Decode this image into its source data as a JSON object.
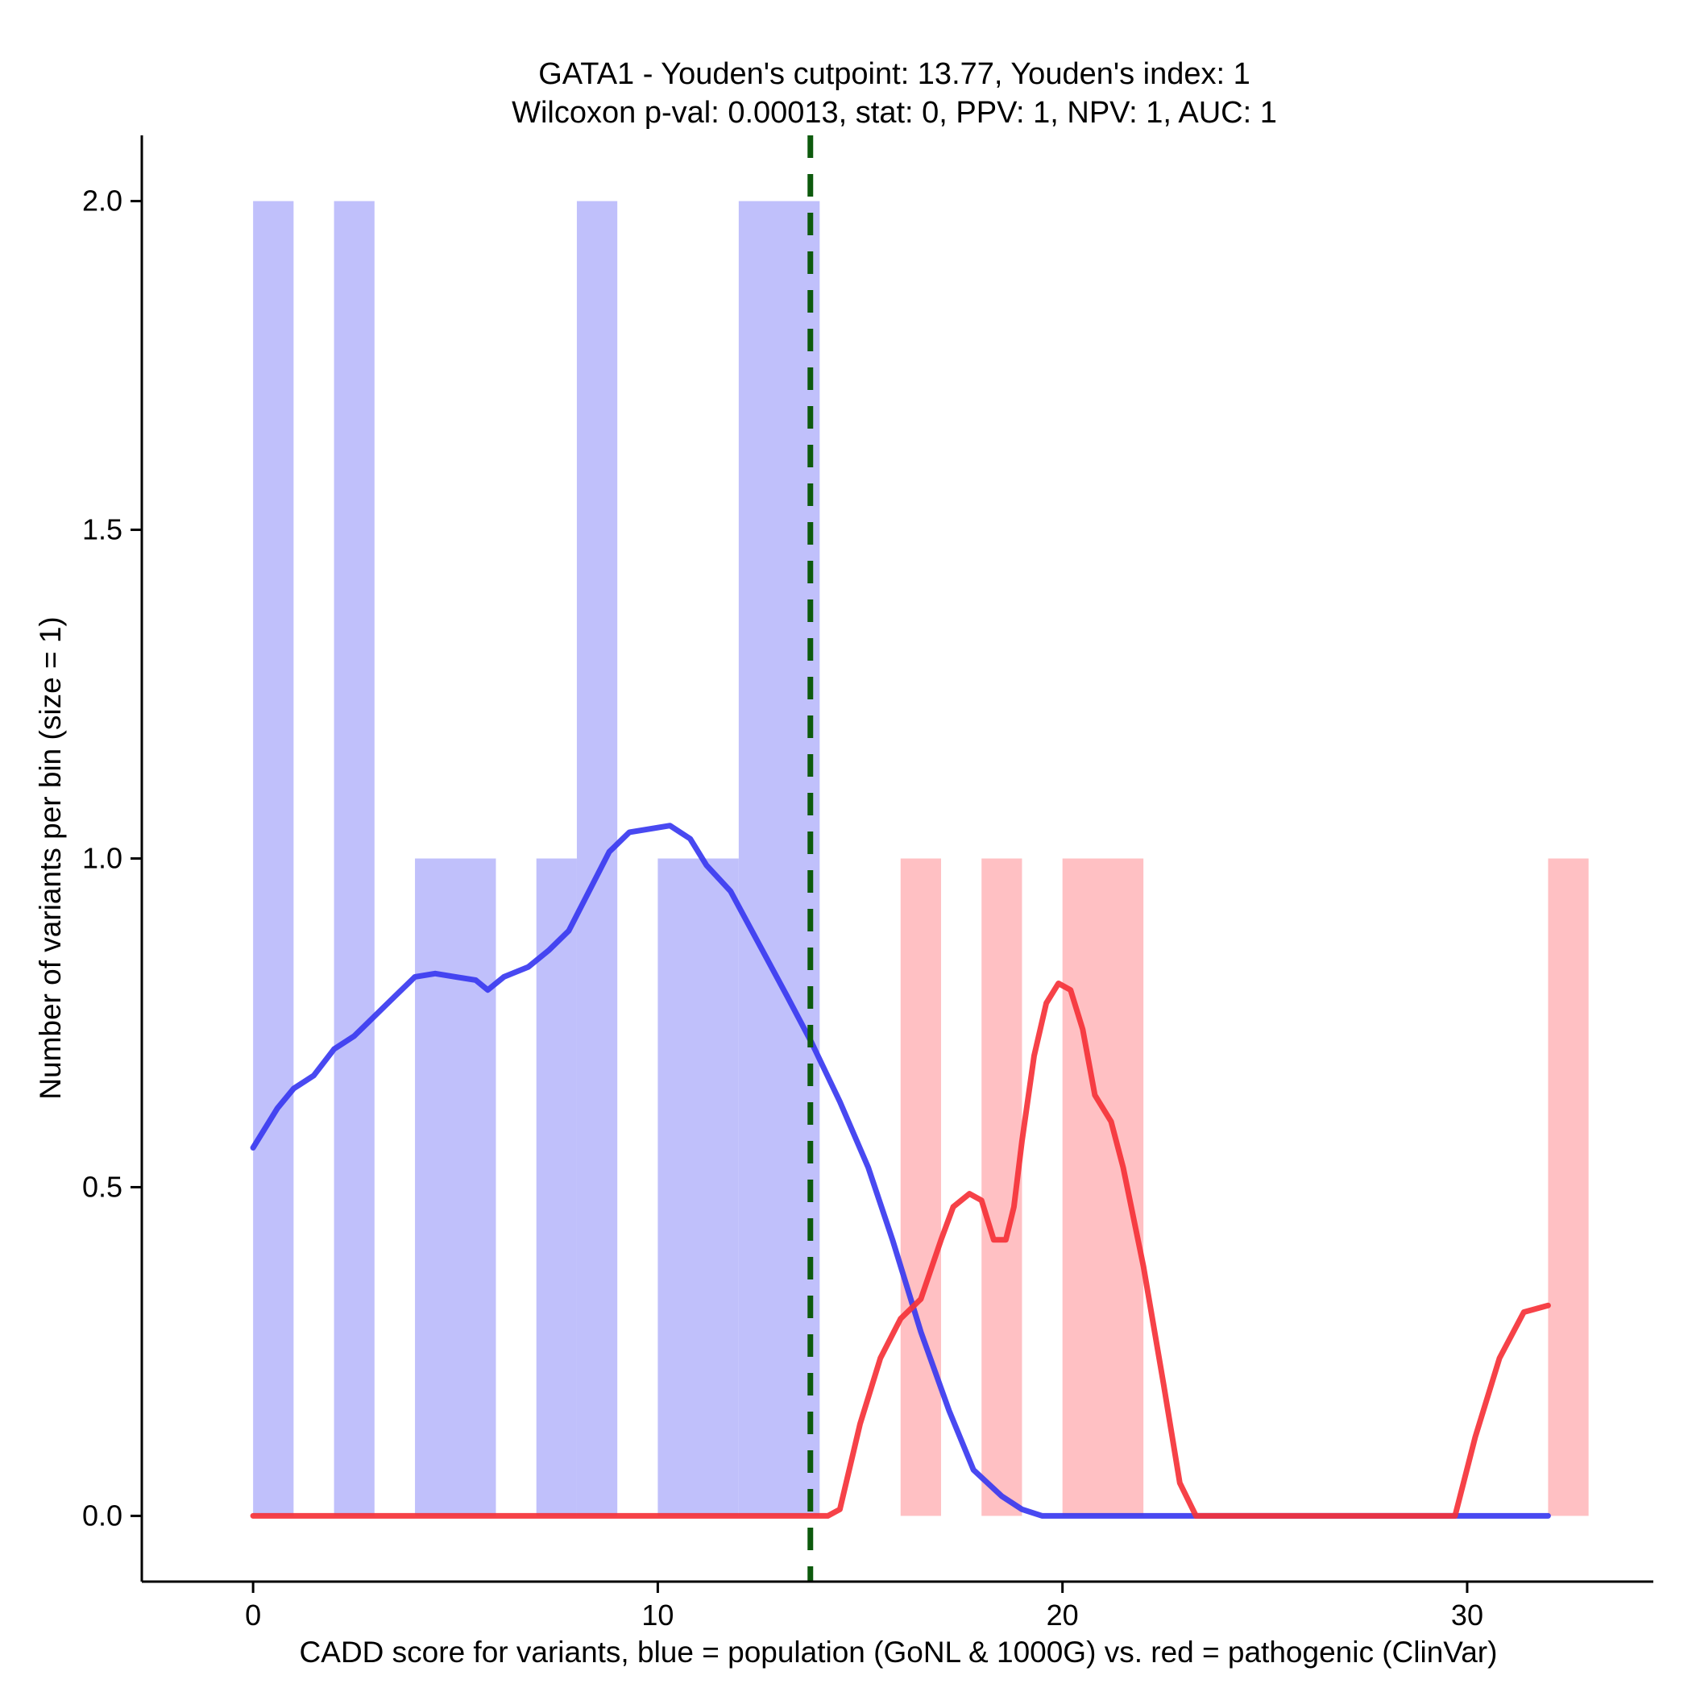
{
  "chart_data": {
    "type": "bar",
    "title": [
      "GATA1 - Youden's cutpoint: 13.77, Youden's index: 1",
      "Wilcoxon p-val: 0.00013, stat: 0, PPV: 1, NPV: 1, AUC: 1"
    ],
    "xlabel": "CADD score for variants, blue = population (GoNL & 1000G) vs. red = pathogenic (ClinVar)",
    "ylabel": "Number of variants per bin (size = 1)",
    "xlim": [
      -2.75,
      34.6
    ],
    "ylim": [
      -0.1,
      2.1
    ],
    "x_ticks": [
      0,
      10,
      20,
      30
    ],
    "x_tick_labels": [
      "0",
      "10",
      "20",
      "30"
    ],
    "y_ticks": [
      0,
      0.5,
      1,
      1.5,
      2
    ],
    "y_tick_labels": [
      "0.0",
      "0.5",
      "1.0",
      "1.5",
      "2.0"
    ],
    "cutpoint": 13.77,
    "colors": {
      "population_bar": "#c0c0fb",
      "pathogenic_bar": "#ffc0c3",
      "population_line": "#3a3af0",
      "pathogenic_line": "#f53238",
      "cutpoint_line": "#0d5a0d"
    },
    "series": [
      {
        "name": "population (GoNL & 1000G)",
        "kind": "histogram",
        "bins": [
          {
            "x0": 0,
            "x1": 1,
            "count": 2
          },
          {
            "x0": 2,
            "x1": 3,
            "count": 2
          },
          {
            "x0": 4,
            "x1": 6,
            "count": 1
          },
          {
            "x0": 7,
            "x1": 8,
            "count": 1
          },
          {
            "x0": 8,
            "x1": 9,
            "count": 2
          },
          {
            "x0": 10,
            "x1": 12,
            "count": 1
          },
          {
            "x0": 12,
            "x1": 14,
            "count": 2
          }
        ]
      },
      {
        "name": "pathogenic (ClinVar)",
        "kind": "histogram",
        "bins": [
          {
            "x0": 16,
            "x1": 17,
            "count": 1
          },
          {
            "x0": 18,
            "x1": 19,
            "count": 1
          },
          {
            "x0": 20,
            "x1": 22,
            "count": 1
          },
          {
            "x0": 32,
            "x1": 33,
            "count": 1
          }
        ]
      },
      {
        "name": "population density",
        "kind": "line",
        "x": [
          0,
          0.3,
          0.6,
          1,
          1.5,
          2,
          2.5,
          3,
          3.5,
          4,
          4.5,
          5,
          5.5,
          5.8,
          6.2,
          6.8,
          7.3,
          7.8,
          8.3,
          8.8,
          9.3,
          9.8,
          10.3,
          10.8,
          11.2,
          11.8,
          12.5,
          13.2,
          13.8,
          14.5,
          15.2,
          15.8,
          16.5,
          17.2,
          17.8,
          18.5,
          19,
          19.5,
          20,
          25,
          32
        ],
        "y": [
          0.56,
          0.59,
          0.62,
          0.65,
          0.67,
          0.71,
          0.73,
          0.76,
          0.79,
          0.82,
          0.825,
          0.82,
          0.815,
          0.8,
          0.82,
          0.835,
          0.86,
          0.89,
          0.95,
          1.01,
          1.04,
          1.045,
          1.05,
          1.03,
          0.99,
          0.95,
          0.87,
          0.79,
          0.72,
          0.63,
          0.53,
          0.42,
          0.28,
          0.16,
          0.07,
          0.03,
          0.01,
          0,
          0,
          0,
          0
        ]
      },
      {
        "name": "pathogenic density",
        "kind": "line",
        "x": [
          0,
          13.5,
          14.2,
          14.5,
          15,
          15.5,
          16,
          16.5,
          17,
          17.3,
          17.7,
          18,
          18.3,
          18.6,
          18.8,
          19,
          19.3,
          19.6,
          19.9,
          20.2,
          20.5,
          20.8,
          21.2,
          21.5,
          22,
          22.5,
          22.9,
          23.3,
          23.6,
          29.7,
          30.2,
          30.8,
          31.4,
          32
        ],
        "y": [
          0,
          0,
          0,
          0.01,
          0.14,
          0.24,
          0.3,
          0.33,
          0.42,
          0.47,
          0.49,
          0.48,
          0.42,
          0.42,
          0.47,
          0.57,
          0.7,
          0.78,
          0.81,
          0.8,
          0.74,
          0.64,
          0.6,
          0.53,
          0.38,
          0.2,
          0.05,
          0,
          0,
          0,
          0.12,
          0.24,
          0.31,
          0.32
        ]
      }
    ]
  }
}
